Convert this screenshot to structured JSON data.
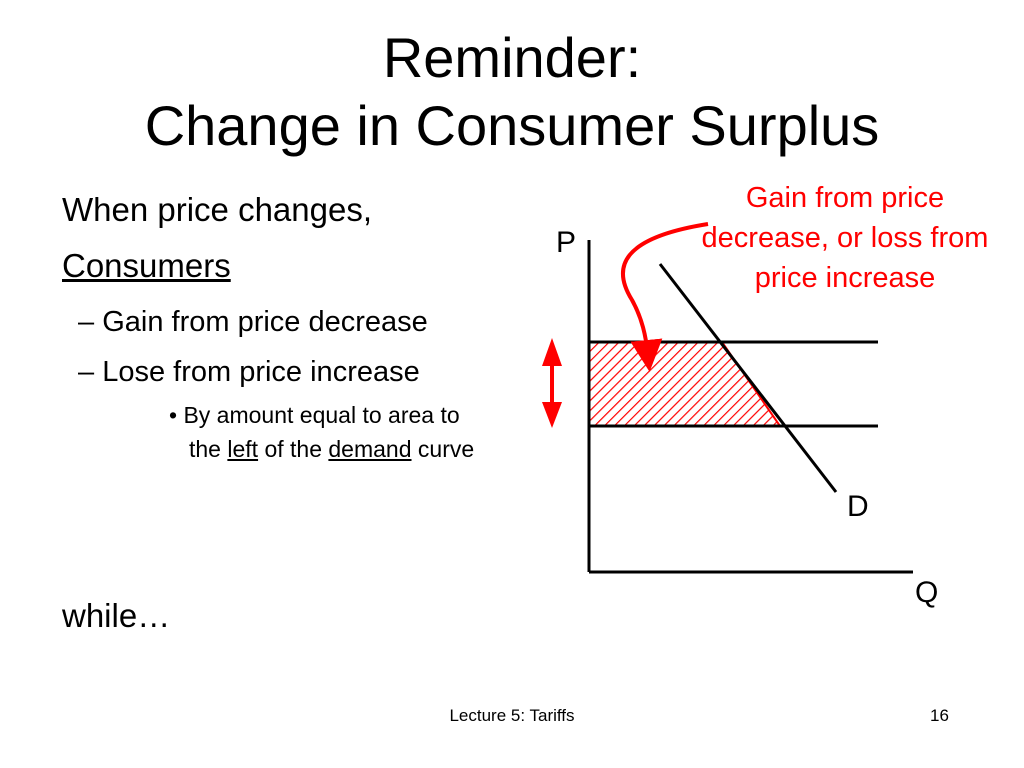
{
  "slide": {
    "title_line1": "Reminder:",
    "title_line2": "Change in Consumer Surplus",
    "intro": "When price changes,",
    "group": "Consumers",
    "bullets": [
      {
        "dash": "–",
        "text": "Gain from price decrease"
      },
      {
        "dash": "–",
        "text": "Lose from price increase"
      }
    ],
    "sub_bullet": {
      "marker": "•",
      "part1": "By amount equal to area to the ",
      "left_word": "left",
      "part2": " of the ",
      "demand_word": "demand",
      "part3": " curve"
    },
    "closing": "while…",
    "footer": "Lecture 5: Tariffs",
    "page_number": "16"
  },
  "diagram": {
    "y_axis_label": "P",
    "x_axis_label": "Q",
    "curve_label": "D",
    "annotation": "Gain from price decrease, or loss from price increase",
    "colors": {
      "accent": "#ff0000",
      "lines": "#000000"
    }
  }
}
